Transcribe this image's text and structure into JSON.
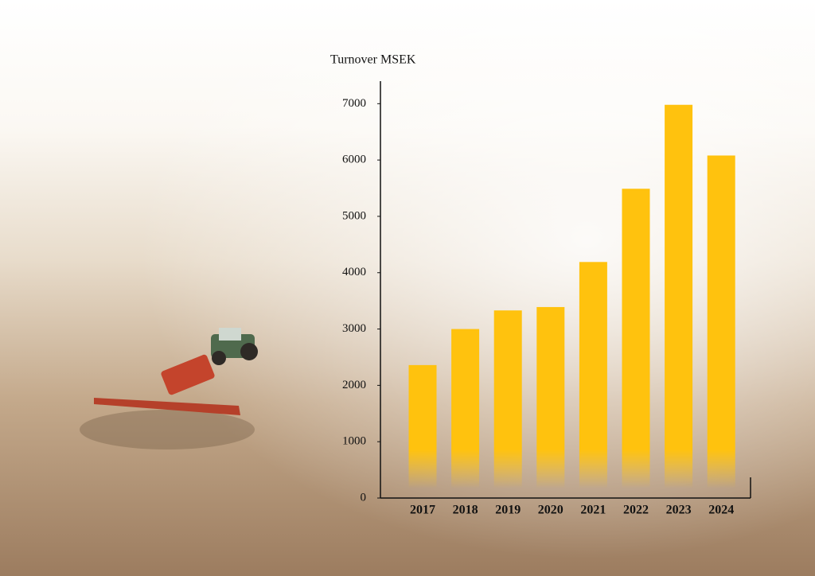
{
  "chart_data": {
    "type": "bar",
    "y_label": "Turnover MSEK",
    "categories": [
      "2017",
      "2018",
      "2019",
      "2020",
      "2021",
      "2022",
      "2023",
      "2024"
    ],
    "values": [
      2360,
      3000,
      3330,
      3390,
      4190,
      5490,
      6980,
      6080
    ],
    "color": "#ffc20e",
    "ylim": [
      0,
      7400
    ],
    "yticks": [
      0,
      1000,
      2000,
      3000,
      4000,
      5000,
      6000,
      7000
    ],
    "grid": false
  }
}
